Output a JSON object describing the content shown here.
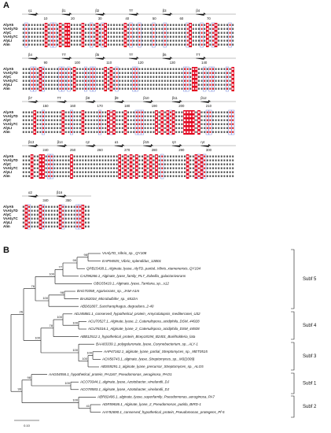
{
  "panel_a": {
    "label": "A",
    "blocks": [
      {
        "ruler": [
          10,
          20,
          30,
          40,
          50,
          60,
          70
        ],
        "structure": [
          "η1",
          "β1",
          "β2",
          "TT",
          "β3",
          "β4"
        ],
        "names": [
          "AlyA5",
          "VsAly7D",
          "AlyC",
          "VsAly7C",
          "AlyLI",
          "Alm"
        ]
      },
      {
        "ruler": [
          90,
          100,
          110,
          120,
          130,
          140
        ],
        "structure": [
          "β4",
          "TT",
          "β5",
          "TT",
          "β6",
          "TT"
        ],
        "names": [
          "AlyA5",
          "VsAly7D",
          "AlyC",
          "VsAly7C",
          "AlyLI",
          "Alm"
        ]
      },
      {
        "ruler": [
          150,
          160,
          170,
          180,
          190,
          200,
          210
        ],
        "structure": [
          "β7",
          "TT",
          "β8",
          "β9",
          "β10",
          "β11",
          "β12"
        ],
        "names": [
          "AlyA5",
          "VsAly7D",
          "AlyC",
          "VsAly7C",
          "AlyLI",
          "Alm"
        ]
      },
      {
        "ruler": [
          240,
          250,
          260,
          270,
          280,
          290,
          300
        ],
        "structure": [
          "β13",
          "β14",
          "η2",
          "α1",
          "β15",
          "η3",
          "η4"
        ],
        "names": [
          "AlyA5",
          "VsAly7D",
          "AlyC",
          "VsAly7C",
          "AlyLI",
          "Alm"
        ]
      },
      {
        "ruler": [
          340,
          350
        ],
        "structure": [
          "α2",
          "β16"
        ],
        "names": [
          "AlyA5",
          "VsAly7D",
          "AlyC",
          "VsAly7C",
          "AlyLI",
          "Alm"
        ]
      }
    ]
  },
  "panel_b": {
    "label": "B",
    "leaves": [
      "VsAly7D_Vibrio_sp._QY108",
      "EAP94925_Vibrio_splendidus_12B01",
      "QPB15438.1_Alginate_lyase_AlyTD_partial_Vibrio_xiamenensis_QY104",
      "CAZ96266.1_Alginate_lyase_family_PL7_Zobellia_galactanivorans",
      "OBG55419.1_Alginate_lyase_Tamlana_sp._s12",
      "BAG70358_Agarivorans_sp._JAM-A1m",
      "BAJ62034_Microbulbifer_sp._6532A",
      "ABD81807_Saccharophagus_degradans_2-40",
      "ADJ45881.1_conserved_hypothetical_protein_Amycolatopsis_mediterranei_U32",
      "ACU70527.1_Alginate_lyase_2_Catenulispora_acidiphila_DSM_44928",
      "ACU76316.1_Alginate_lyase_2_Catenulispora_acidiphila_DSM_44928",
      "ABB12512.1_hypothetical_protein_Bcep18194_B2401_Burkholderia_lata",
      "BAA83339.1_polyguluronate_lyase_Corynebacterium_sp._ALY-1",
      "AAP47162.1_alginate_lyase_partial_Streptomyces_sp._MET0515",
      "ACN56743.1_alginate_lyase_Streptomyces_sp._M3(2009)",
      "ABS59291.1_alginate_lyase_precursor_Streptomyces_sp._ALG5",
      "AAG04556.1_hypothetical_protein_PA1167_Pseudomonas_aeruginosa_PAO1",
      "ACO79344.1_alginate_lyase_Azotobacter_vinelandii_DJ",
      "ACO78583.1_alginate_lyase_Azotobacter_vinelandii_DJ",
      "ABR82406.1_alginate_lyase_superfamily_Pseudomonas_aeruginosa_PA7",
      "ADR59636.1_Alginate_lyase_2_Pseudomonas_putida_BIRD-1",
      "AAY92690.1_conserved_hypothetical_protein_Pseudomonas_protegens_Pf-5"
    ],
    "support": [
      98,
      99,
      77,
      100,
      98,
      100,
      76,
      100,
      100,
      78,
      100,
      100,
      100,
      100,
      26,
      100,
      98,
      41,
      100,
      99
    ],
    "subfamilies": [
      "Subf 5",
      "Subf 4",
      "Subf 3",
      "Subf 1",
      "Subf 2"
    ],
    "scale": "0.10"
  }
}
